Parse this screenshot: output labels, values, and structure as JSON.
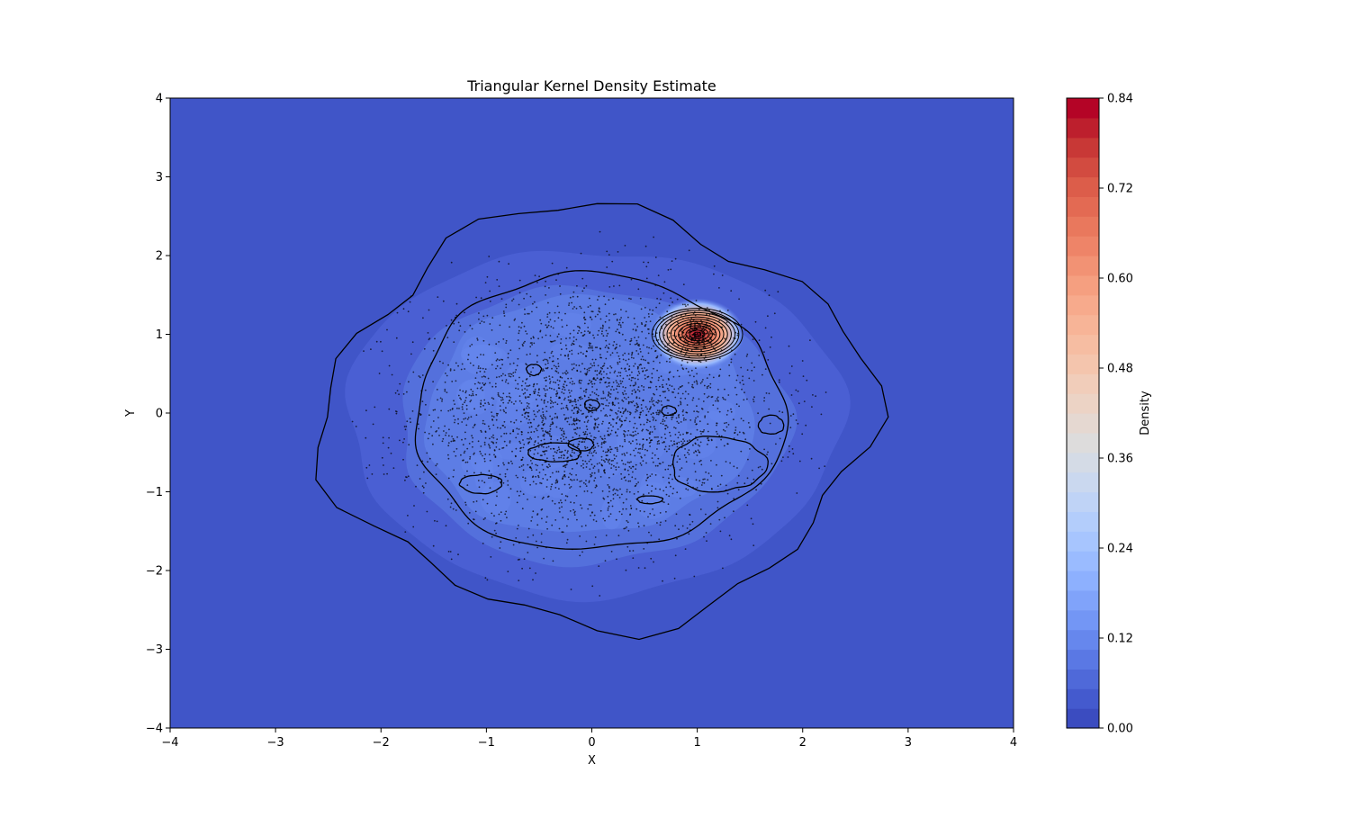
{
  "chart_data": {
    "type": "heatmap",
    "title": "Triangular Kernel Density Estimate",
    "xlabel": "X",
    "ylabel": "Y",
    "xlim": [
      -4,
      4
    ],
    "ylim": [
      -4,
      4
    ],
    "x_ticks": [
      -4,
      -3,
      -2,
      -1,
      0,
      1,
      2,
      3,
      4
    ],
    "y_ticks": [
      -4,
      -3,
      -2,
      -1,
      0,
      1,
      2,
      3,
      4
    ],
    "x_tick_labels": [
      "−4",
      "−3",
      "−2",
      "−1",
      "0",
      "1",
      "2",
      "3",
      "4"
    ],
    "y_tick_labels": [
      "−4",
      "−3",
      "−2",
      "−1",
      "0",
      "1",
      "2",
      "3",
      "4"
    ],
    "grid": false,
    "colorbar": {
      "label": "Density",
      "range": [
        0,
        0.84
      ],
      "ticks": [
        0.0,
        0.12,
        0.24,
        0.36,
        0.48,
        0.6,
        0.72,
        0.84
      ],
      "tick_labels": [
        "0.00",
        "0.12",
        "0.24",
        "0.36",
        "0.48",
        "0.60",
        "0.72",
        "0.84"
      ],
      "levels": 21,
      "colormap": "coolwarm",
      "colors": [
        "#3b4cc0",
        "#445ace",
        "#4f69d9",
        "#5a78e4",
        "#6687ed",
        "#7396f5",
        "#80a3fa",
        "#8db0fe",
        "#9abbff",
        "#a7c5fe",
        "#b3cdfb",
        "#bfd3f6",
        "#cad8ef",
        "#d4dbe6",
        "#dddcdc",
        "#e5d8d1",
        "#ecd3c5",
        "#f1cdba",
        "#f4c5ad",
        "#f6bda2",
        "#f7b497",
        "#f7aa8c",
        "#f59f80",
        "#f29274",
        "#ee8468",
        "#e9785d",
        "#e36a53",
        "#dc5d4a",
        "#d24b40",
        "#c83836",
        "#bd1f2d",
        "#b40426"
      ]
    },
    "point_color": "#000000",
    "density_model": {
      "background_mass": {
        "center": [
          0.0,
          0.0
        ],
        "spread": 1.0,
        "count": 3000
      },
      "peak": {
        "center": [
          1.0,
          1.0
        ],
        "peak_density": 0.84
      }
    }
  }
}
